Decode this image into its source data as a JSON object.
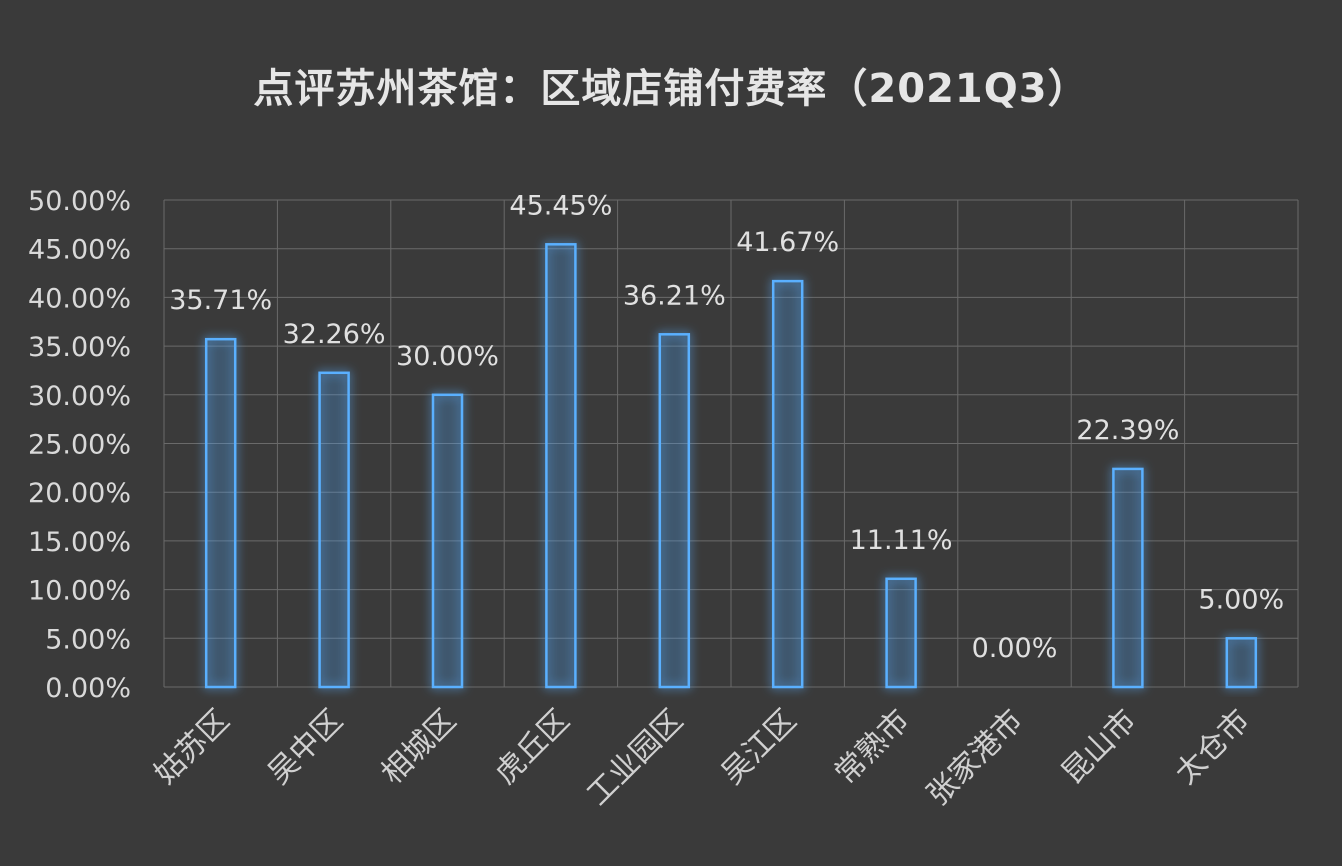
{
  "chart_data": {
    "type": "bar",
    "title": "点评苏州茶馆：区域店铺付费率（2021Q3）",
    "categories": [
      "姑苏区",
      "吴中区",
      "相城区",
      "虎丘区",
      "工业园区",
      "吴江区",
      "常熟市",
      "张家港市",
      "昆山市",
      "太仓市"
    ],
    "values": [
      35.71,
      32.26,
      30.0,
      45.45,
      36.21,
      41.67,
      11.11,
      0.0,
      22.39,
      5.0
    ],
    "data_labels": [
      "35.71%",
      "32.26%",
      "30.00%",
      "45.45%",
      "36.21%",
      "41.67%",
      "11.11%",
      "0.00%",
      "22.39%",
      "5.00%"
    ],
    "y_ticks": [
      "0.00%",
      "5.00%",
      "10.00%",
      "15.00%",
      "20.00%",
      "25.00%",
      "30.00%",
      "35.00%",
      "40.00%",
      "45.00%",
      "50.00%"
    ],
    "ylim": [
      0,
      50
    ],
    "xlabel": "",
    "ylabel": "",
    "grid": true,
    "legend": "none",
    "colors": {
      "background": "#3a3a3a",
      "bar_stroke": "#5ab0ff",
      "text": "#d9d9d9",
      "grid": "#6a6a6a"
    }
  }
}
